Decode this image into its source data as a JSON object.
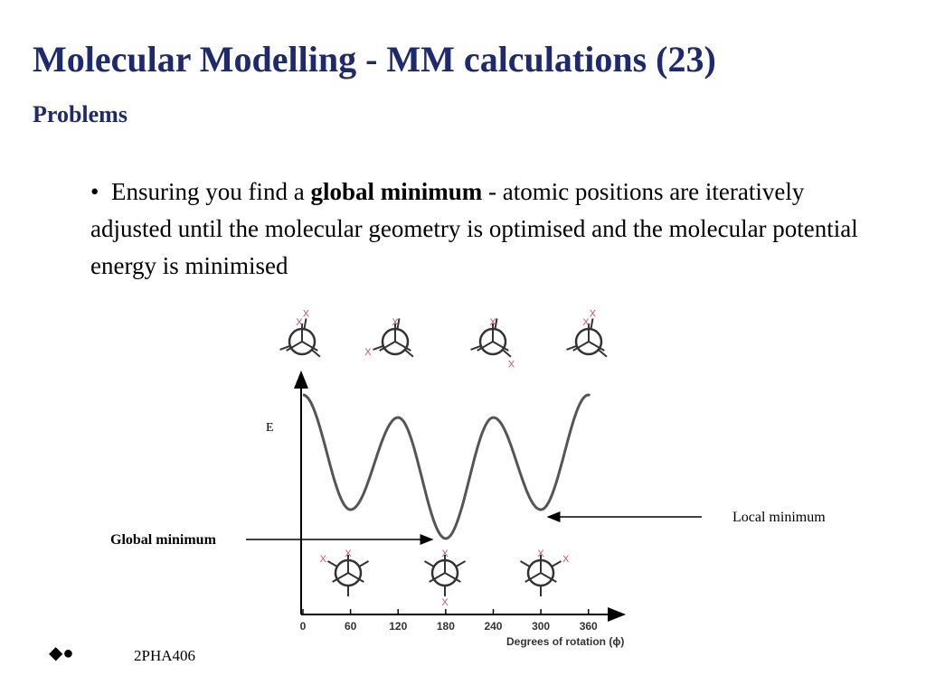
{
  "slide": {
    "title": "Molecular Modelling - MM calculations (23)",
    "subtitle": "Problems",
    "bullet": {
      "marker": "•",
      "before": "Ensuring you find a ",
      "bold": "global minimum",
      "after": " - atomic positions are iteratively adjusted until the molecular geometry is optimised and the molecular potential energy is minimised"
    }
  },
  "figure": {
    "energy_label": "E",
    "x_axis_label": "Degrees of rotation (ϕ)",
    "x_ticks": [
      "0",
      "60",
      "120",
      "180",
      "240",
      "300",
      "360"
    ],
    "global_minimum_label": "Global minimum",
    "local_minimum_label": "Local minimum",
    "substituent_label": "X",
    "accent_color": "#c8506e"
  },
  "footer": {
    "logo_glyphs": "◆●",
    "course_code": "2PHA406"
  }
}
